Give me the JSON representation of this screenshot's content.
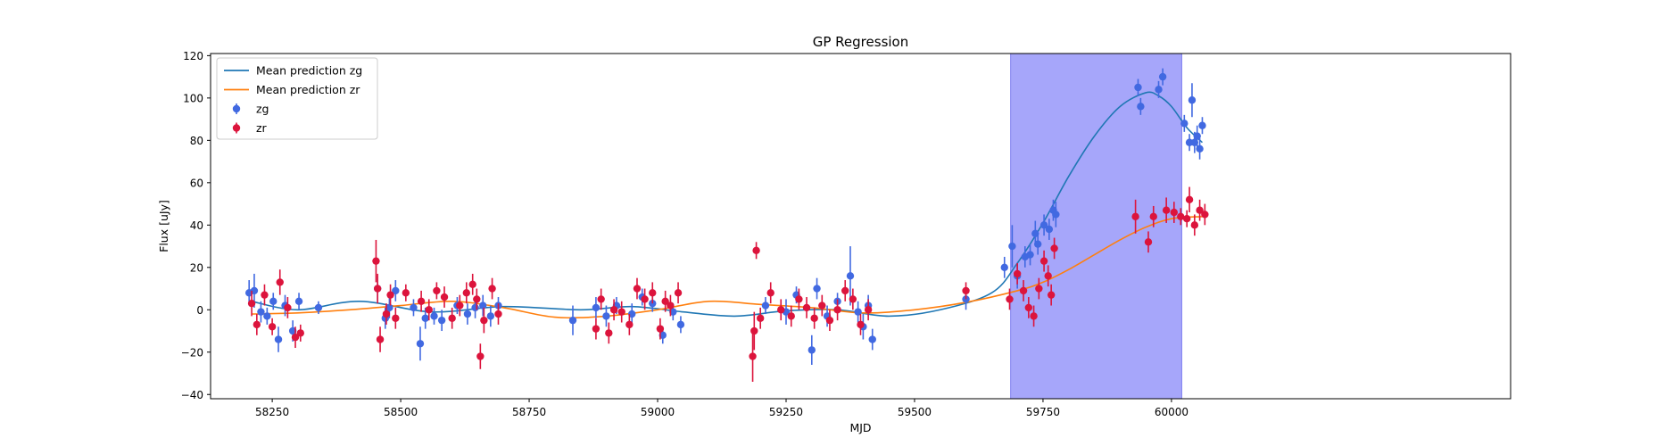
{
  "chart_data": {
    "type": "scatter",
    "title": "GP Regression",
    "xlabel": "MJD",
    "ylabel": "Flux [uJy]",
    "xlim": [
      58130,
      60660
    ],
    "ylim": [
      -42,
      121
    ],
    "xticks": [
      58250,
      58500,
      58750,
      59000,
      59250,
      59500,
      59750,
      60000
    ],
    "yticks": [
      -40,
      -20,
      0,
      20,
      40,
      60,
      80,
      100,
      120
    ],
    "legend_position": "top-left",
    "grid": false,
    "highlight_span": {
      "x0": 59687,
      "x1": 60020,
      "color": "#a6a6fa"
    },
    "series": [
      {
        "name": "Mean prediction zg",
        "kind": "line",
        "color": "#1f77b4",
        "x": [
          58210,
          58300,
          58420,
          58560,
          58700,
          58850,
          58950,
          59050,
          59150,
          59250,
          59350,
          59450,
          59550,
          59650,
          59700,
          59750,
          59800,
          59850,
          59900,
          59950,
          59975,
          60000,
          60030,
          60060
        ],
        "y": [
          4.0,
          0.0,
          4.0,
          -1.0,
          1.5,
          0.0,
          1.5,
          -1.0,
          -3.0,
          -0.5,
          0.0,
          -3.0,
          0.0,
          8.0,
          22.0,
          41.0,
          63.0,
          82.0,
          96.0,
          102.5,
          101.0,
          96.0,
          86.0,
          79.0
        ]
      },
      {
        "name": "Mean prediction zr",
        "kind": "line",
        "color": "#ff7f0e",
        "x": [
          58210,
          58300,
          58400,
          58500,
          58600,
          58700,
          58800,
          58900,
          59000,
          59100,
          59200,
          59300,
          59400,
          59500,
          59600,
          59700,
          59750,
          59800,
          59850,
          59900,
          59950,
          60000,
          60060
        ],
        "y": [
          -2.0,
          -1.5,
          0.0,
          2.0,
          4.0,
          1.0,
          -3.5,
          -3.0,
          0.0,
          4.0,
          2.5,
          1.0,
          -1.5,
          0.0,
          3.5,
          9.0,
          13.0,
          19.0,
          26.0,
          33.0,
          39.0,
          43.0,
          44.0
        ]
      },
      {
        "name": "zg",
        "kind": "errorbar",
        "color": "#4169e1",
        "x": [
          58205,
          58215,
          58228,
          58240,
          58252,
          58262,
          58275,
          58290,
          58302,
          58340,
          58455,
          58470,
          58478,
          58490,
          58525,
          58538,
          58548,
          58565,
          58580,
          58610,
          58630,
          58645,
          58660,
          58675,
          58690,
          58835,
          58880,
          58900,
          58920,
          58950,
          58970,
          58990,
          59010,
          59030,
          59045,
          59210,
          59250,
          59270,
          59300,
          59310,
          59330,
          59350,
          59375,
          59390,
          59400,
          59410,
          59418,
          59600,
          59675,
          59690,
          59700,
          59715,
          59725,
          59735,
          59740,
          59752,
          59762,
          59770,
          59775,
          59935,
          59940,
          59975,
          59983,
          60025,
          60035,
          60040,
          60045,
          60050,
          60055,
          60060
        ],
        "y": [
          8,
          9,
          -1,
          -3,
          4,
          -14,
          2,
          -10,
          4,
          1,
          10,
          -4,
          1,
          9,
          1,
          -16,
          -4,
          -3,
          -5,
          2,
          -2,
          1,
          2,
          -3,
          2,
          -5,
          1,
          -3,
          2,
          -2,
          6,
          3,
          -12,
          -1,
          -7,
          2,
          -1,
          7,
          -19,
          10,
          -3,
          4,
          16,
          -1,
          -8,
          2,
          -14,
          5,
          20,
          30,
          16,
          25,
          26,
          36,
          31,
          40,
          38,
          47,
          45,
          105,
          96,
          104,
          110,
          88,
          79,
          99,
          79,
          82,
          76,
          87
        ],
        "err": [
          6,
          8,
          5,
          4,
          4,
          6,
          5,
          5,
          4,
          3,
          6,
          5,
          5,
          5,
          4,
          8,
          5,
          4,
          5,
          4,
          5,
          5,
          5,
          5,
          4,
          7,
          5,
          5,
          4,
          5,
          4,
          4,
          4,
          4,
          4,
          4,
          6,
          4,
          7,
          5,
          5,
          4,
          14,
          5,
          6,
          5,
          5,
          5,
          5,
          10,
          6,
          5,
          5,
          6,
          5,
          5,
          5,
          5,
          6,
          4,
          4,
          4,
          4,
          4,
          4,
          8,
          5,
          5,
          5,
          4
        ]
      },
      {
        "name": "zr",
        "kind": "errorbar",
        "color": "#dc143c",
        "x": [
          58210,
          58220,
          58235,
          58250,
          58265,
          58280,
          58295,
          58305,
          58452,
          58455,
          58460,
          58472,
          58480,
          58490,
          58510,
          58540,
          58555,
          58570,
          58585,
          58600,
          58615,
          58628,
          58640,
          58648,
          58655,
          58662,
          58678,
          58690,
          58880,
          58890,
          58905,
          58915,
          58930,
          58945,
          58960,
          58975,
          58990,
          59005,
          59015,
          59025,
          59040,
          59185,
          59188,
          59192,
          59200,
          59220,
          59240,
          59260,
          59275,
          59290,
          59305,
          59320,
          59335,
          59350,
          59365,
          59380,
          59395,
          59410,
          59600,
          59685,
          59700,
          59712,
          59722,
          59732,
          59742,
          59752,
          59760,
          59766,
          59772,
          59930,
          59955,
          59965,
          59990,
          60005,
          60018,
          60030,
          60035,
          60045,
          60055,
          60065
        ],
        "y": [
          3,
          -7,
          7,
          -8,
          13,
          1,
          -13,
          -11,
          23,
          10,
          -14,
          -2,
          7,
          -4,
          8,
          4,
          0,
          9,
          6,
          -4,
          2,
          8,
          12,
          5,
          -22,
          -5,
          10,
          -2,
          -9,
          5,
          -11,
          0,
          -1,
          -7,
          10,
          5,
          8,
          -9,
          4,
          2,
          8,
          -22,
          -10,
          28,
          -4,
          8,
          0,
          -3,
          5,
          1,
          -4,
          2,
          -5,
          0,
          9,
          5,
          -7,
          0,
          9,
          5,
          17,
          9,
          1,
          -3,
          10,
          23,
          16,
          7,
          29,
          44,
          32,
          44,
          47,
          46,
          44,
          43,
          52,
          40,
          47,
          45
        ],
        "err": [
          6,
          5,
          5,
          4,
          6,
          5,
          5,
          4,
          10,
          7,
          6,
          5,
          5,
          5,
          4,
          5,
          5,
          4,
          5,
          5,
          5,
          5,
          5,
          5,
          6,
          6,
          5,
          5,
          5,
          5,
          5,
          5,
          5,
          5,
          5,
          5,
          5,
          5,
          5,
          5,
          5,
          12,
          9,
          4,
          5,
          5,
          5,
          5,
          5,
          5,
          5,
          5,
          5,
          5,
          5,
          5,
          5,
          5,
          4,
          5,
          5,
          5,
          5,
          5,
          5,
          5,
          5,
          5,
          5,
          8,
          5,
          5,
          6,
          5,
          4,
          4,
          6,
          5,
          5,
          5
        ]
      }
    ]
  }
}
